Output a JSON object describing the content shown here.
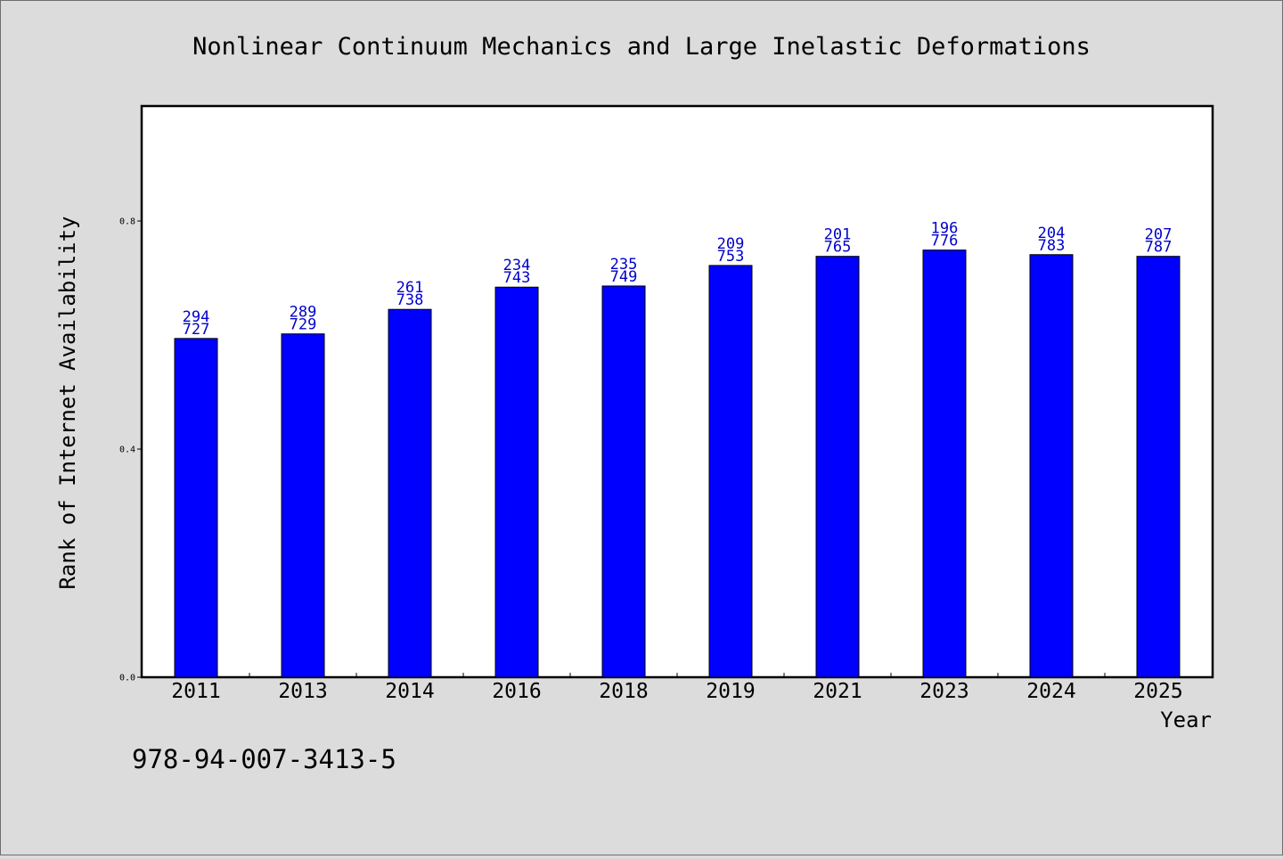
{
  "chart_data": {
    "type": "bar",
    "title": "Nonlinear Continuum Mechanics and Large Inelastic Deformations",
    "xlabel": "Year",
    "ylabel": "Rank of Internet Availability",
    "categories": [
      "2011",
      "2013",
      "2014",
      "2016",
      "2018",
      "2019",
      "2021",
      "2023",
      "2024",
      "2025"
    ],
    "values": [
      0.594,
      0.602,
      0.645,
      0.684,
      0.686,
      0.722,
      0.738,
      0.749,
      0.741,
      0.738
    ],
    "labels_top": [
      "294",
      "289",
      "261",
      "234",
      "235",
      "209",
      "201",
      "196",
      "204",
      "207"
    ],
    "labels_bottom": [
      "727",
      "729",
      "738",
      "743",
      "749",
      "753",
      "765",
      "776",
      "783",
      "787"
    ],
    "yticks": [
      "0.0",
      "0.4",
      "0.8"
    ],
    "ytick_values": [
      0.0,
      0.4,
      0.8
    ],
    "ylim": [
      0,
      1.0
    ],
    "grid": false,
    "bar_color": "#0000ff",
    "label_color": "#0000cc"
  },
  "footer": {
    "isbn": "978-94-007-3413-5"
  }
}
